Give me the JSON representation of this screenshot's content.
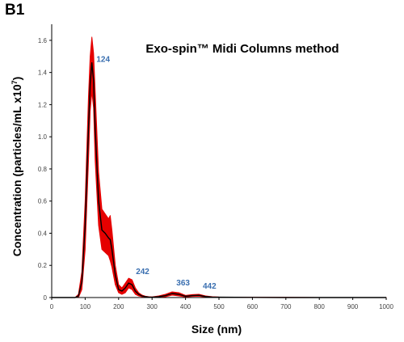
{
  "panel_label": "B1",
  "chart_data": {
    "type": "line",
    "title": "Exo-spin™ Midi Columns method",
    "xlabel": "Size (nm)",
    "ylabel": "Concentration (particles/mL x10",
    "ylabel_sup": "7",
    "ylabel_close": ")",
    "xlim": [
      0,
      1000
    ],
    "ylim": [
      0,
      1.7
    ],
    "xticks": [
      0,
      100,
      200,
      300,
      400,
      500,
      600,
      700,
      800,
      900,
      1000
    ],
    "yticks": [
      0,
      0.2,
      0.4,
      0.6,
      0.8,
      1.0,
      1.2,
      1.4,
      1.6
    ],
    "ytick_labels": [
      "0",
      "0.2",
      "0.4",
      "0.6",
      "0.8",
      "1.0",
      "1.2",
      "1.4",
      "1.6"
    ],
    "grid": false,
    "series": [
      {
        "role": "mean",
        "color": "#000000",
        "x": [
          0,
          70,
          80,
          90,
          100,
          110,
          115,
          120,
          125,
          130,
          140,
          150,
          160,
          170,
          175,
          180,
          190,
          200,
          210,
          220,
          230,
          240,
          250,
          260,
          270,
          280,
          290,
          300,
          320,
          340,
          360,
          380,
          400,
          420,
          440,
          460,
          480,
          500,
          600,
          700,
          800,
          900,
          1000
        ],
        "y": [
          0,
          0,
          0.01,
          0.1,
          0.45,
          1.05,
          1.33,
          1.46,
          1.35,
          1.05,
          0.6,
          0.42,
          0.4,
          0.37,
          0.36,
          0.3,
          0.14,
          0.05,
          0.04,
          0.06,
          0.09,
          0.08,
          0.04,
          0.02,
          0.01,
          0.005,
          0.003,
          0.002,
          0.005,
          0.012,
          0.025,
          0.02,
          0.008,
          0.012,
          0.014,
          0.006,
          0.003,
          0.002,
          0.001,
          0,
          0,
          0,
          0
        ]
      },
      {
        "role": "error-band",
        "color": "#e50000",
        "x": [
          0,
          70,
          80,
          90,
          100,
          110,
          115,
          120,
          125,
          130,
          140,
          150,
          160,
          170,
          175,
          180,
          190,
          200,
          210,
          220,
          230,
          240,
          250,
          260,
          270,
          280,
          290,
          300,
          320,
          340,
          360,
          380,
          400,
          420,
          440,
          460,
          480,
          500,
          600,
          700,
          800,
          900,
          1000
        ],
        "upper": [
          0,
          0,
          0.02,
          0.16,
          0.6,
          1.25,
          1.5,
          1.62,
          1.52,
          1.28,
          0.78,
          0.55,
          0.52,
          0.49,
          0.51,
          0.42,
          0.2,
          0.08,
          0.06,
          0.09,
          0.12,
          0.11,
          0.06,
          0.03,
          0.015,
          0.008,
          0.005,
          0.004,
          0.01,
          0.02,
          0.035,
          0.03,
          0.013,
          0.018,
          0.02,
          0.01,
          0.005,
          0.003,
          0.002,
          0.001,
          0,
          0,
          0
        ],
        "lower": [
          0,
          0,
          0,
          0.05,
          0.3,
          0.85,
          1.16,
          1.28,
          1.18,
          0.85,
          0.45,
          0.3,
          0.28,
          0.26,
          0.23,
          0.19,
          0.08,
          0.03,
          0.02,
          0.03,
          0.06,
          0.05,
          0.02,
          0.01,
          0.005,
          0.002,
          0.001,
          0,
          0.002,
          0.005,
          0.015,
          0.01,
          0.004,
          0.007,
          0.008,
          0.003,
          0.001,
          0,
          0,
          0,
          0,
          0,
          0
        ]
      }
    ],
    "annotations": [
      {
        "text": "124",
        "x": 124,
        "y": 1.44
      },
      {
        "text": "242",
        "x": 242,
        "y": 0.12
      },
      {
        "text": "363",
        "x": 363,
        "y": 0.05
      },
      {
        "text": "442",
        "x": 442,
        "y": 0.03
      }
    ]
  }
}
